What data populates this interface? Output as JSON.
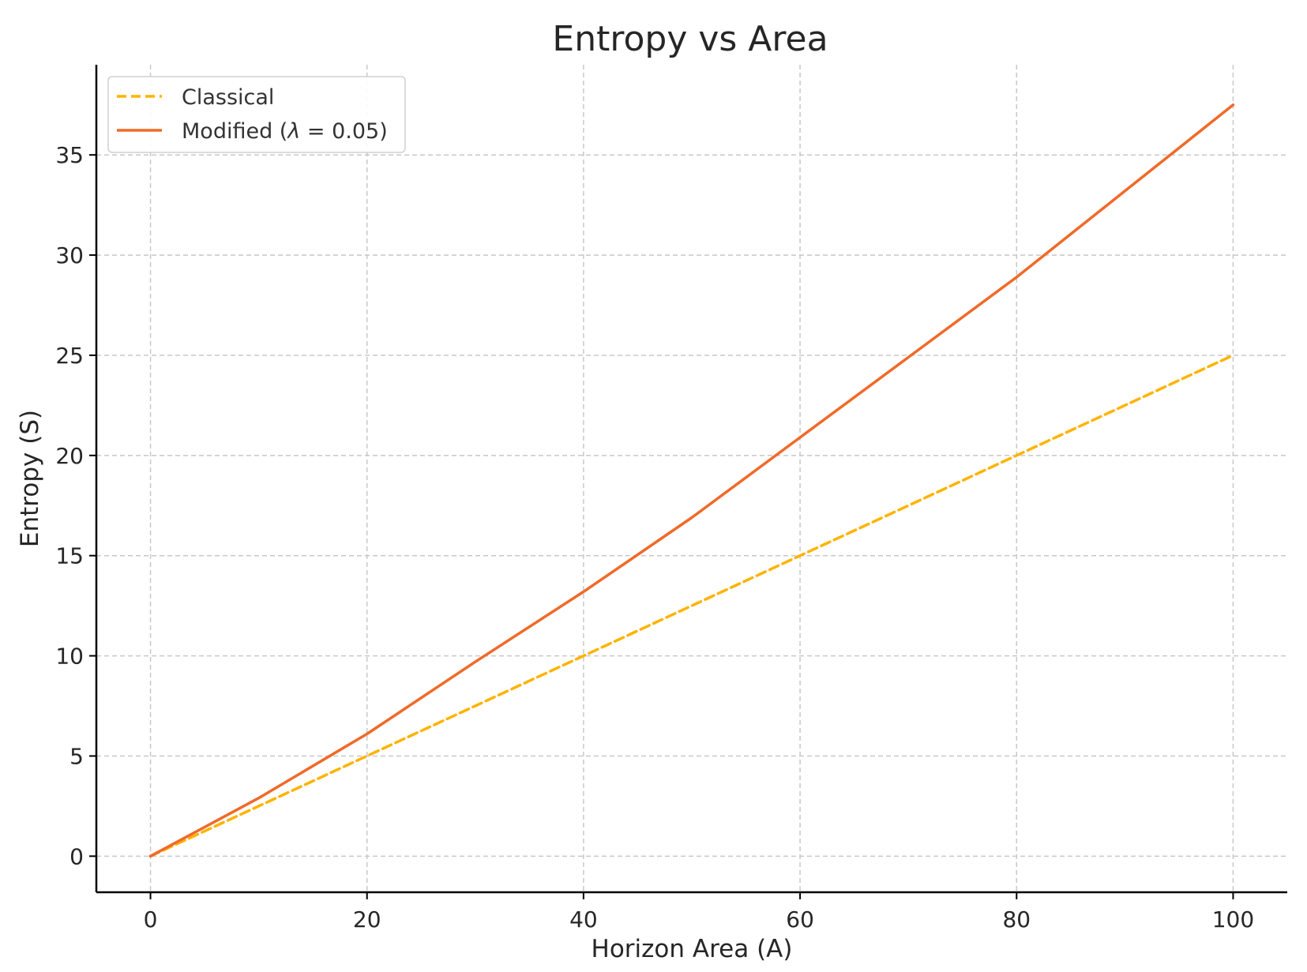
{
  "chart_data": {
    "type": "line",
    "title": "Entropy vs Area",
    "xlabel": "Horizon Area (A)",
    "ylabel": "Entropy (S)",
    "xlim": [
      -5,
      105
    ],
    "ylim": [
      -1.8,
      39.5
    ],
    "xticks": [
      0,
      20,
      40,
      60,
      80,
      100
    ],
    "yticks": [
      0,
      5,
      10,
      15,
      20,
      25,
      30,
      35
    ],
    "grid": true,
    "legend_position": "top-left",
    "series": [
      {
        "name": "Classical",
        "style": "dashed",
        "color": "#ffb300",
        "x": [
          0,
          10,
          20,
          30,
          40,
          50,
          60,
          70,
          80,
          90,
          100
        ],
        "y": [
          0,
          2.5,
          5,
          7.5,
          10,
          12.5,
          15,
          17.5,
          20,
          22.5,
          25
        ]
      },
      {
        "name": "Modified (λ = 0.05)",
        "legend_prefix": "Modified (",
        "legend_lambda": "λ",
        "legend_suffix": " = 0.05)",
        "style": "solid",
        "color": "#f06a28",
        "x": [
          0,
          10,
          20,
          30,
          40,
          50,
          60,
          70,
          80,
          90,
          100
        ],
        "y": [
          0,
          2.9,
          6.1,
          9.7,
          13.2,
          16.9,
          20.9,
          24.9,
          28.9,
          33.2,
          37.5
        ]
      }
    ]
  }
}
